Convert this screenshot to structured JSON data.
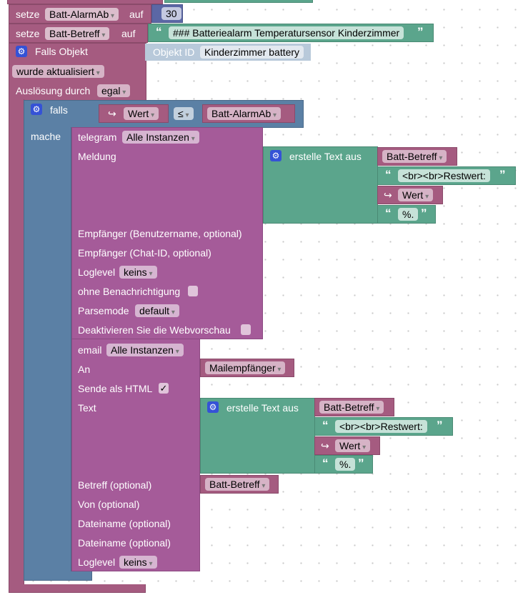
{
  "set1": {
    "keyword": "setze",
    "variable": "Batt-AlarmAb",
    "to": "auf",
    "value": "30"
  },
  "set2": {
    "keyword": "setze",
    "variable": "Batt-Betreff",
    "to": "auf",
    "value": "### Batteriealarm Temperatursensor Kinderzimmer"
  },
  "trigger": {
    "title": "Falls Objekt",
    "object_label": "Objekt ID",
    "object_value": "Kinderzimmer battery",
    "event": "wurde aktualisiert",
    "trigger_by_label": "Auslösung durch",
    "trigger_by": "egal"
  },
  "if_block": {
    "if_label": "falls",
    "do_label": "mache",
    "left": "Wert",
    "operator": "≤",
    "right": "Batt-AlarmAb"
  },
  "telegram": {
    "title": "telegram",
    "instance": "Alle Instanzen",
    "message_label": "Meldung",
    "recipient_user": "Empfänger (Benutzername, optional)",
    "recipient_chat": "Empfänger (Chat-ID, optional)",
    "loglevel_label": "Loglevel",
    "loglevel": "keins",
    "silent_label": "ohne Benachrichtigung",
    "parsemode_label": "Parsemode",
    "parsemode": "default",
    "disable_preview_label": "Deaktivieren Sie die Webvorschau",
    "text_join": {
      "title": "erstelle Text aus",
      "item1": "Batt-Betreff",
      "item2": "<br><br>Restwert:",
      "item3": "Wert",
      "item4": "%."
    }
  },
  "email": {
    "title": "email",
    "instance": "Alle Instanzen",
    "to_label": "An",
    "to_value": "Mailempfänger",
    "html_label": "Sende als HTML",
    "html_checked": "✓",
    "text_label": "Text",
    "subject_label": "Betreff (optional)",
    "subject_value": "Batt-Betreff",
    "from_label": "Von (optional)",
    "file1_label": "Dateiname (optional)",
    "file2_label": "Dateiname (optional)",
    "loglevel_label": "Loglevel",
    "loglevel": "keins",
    "text_join": {
      "title": "erstelle Text aus",
      "item1": "Batt-Betreff",
      "item2": "<br><br>Restwert:",
      "item3": "Wert",
      "item4": "%."
    }
  },
  "colors": {
    "variable_block": "#a55b80",
    "messaging_block": "#a55b99",
    "text_block": "#5ba58c",
    "logic_block": "#5b80a5",
    "number_block": "#5b67a5"
  }
}
